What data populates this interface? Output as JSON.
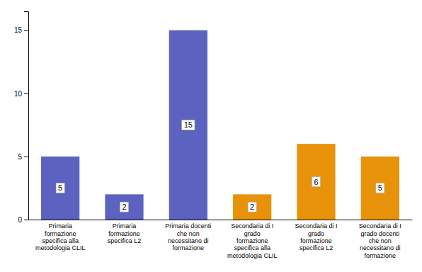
{
  "chart_data": {
    "type": "bar",
    "categories": [
      "Primaria\nformazione\nspecifica alla\nmetodologia CLIL",
      "Primaria\nformazione\nspecifica L2",
      "Primaria docenti\nche non\nnecessitano di\nformazione",
      "Secondaria di I\ngrado\nformazione\nspecifica alla\nmetodologia CLIL",
      "Secondaria di I\ngrado\nformazione\nspecifica L2",
      "Secondaria di I\ngrado docenti\nche non\nnecessitano di\nformazione"
    ],
    "values": [
      5,
      2,
      15,
      2,
      6,
      5
    ],
    "colors": [
      "#5b62c0",
      "#5b62c0",
      "#5b62c0",
      "#e8920a",
      "#e8920a",
      "#e8920a"
    ],
    "ylim": [
      0,
      16.5
    ],
    "yticks": [
      0,
      5,
      10,
      15
    ],
    "grid": false,
    "data_labels": true
  }
}
